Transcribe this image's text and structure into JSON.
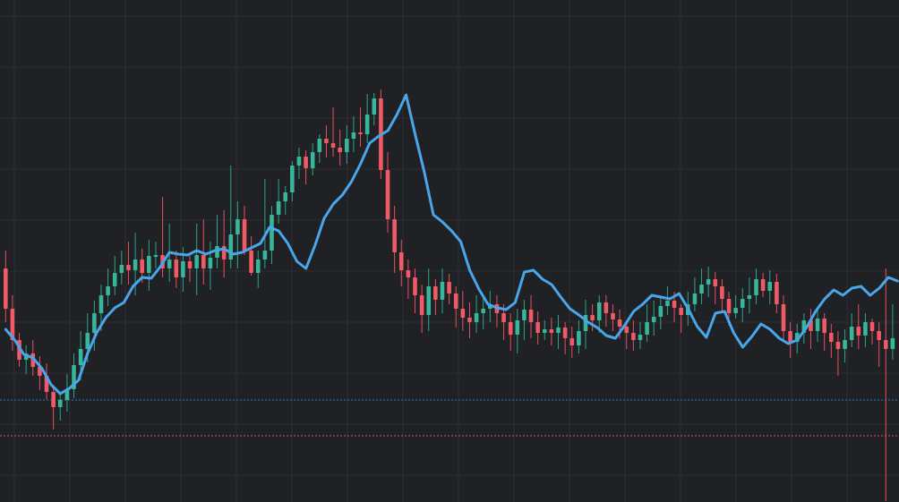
{
  "chart_data": {
    "type": "candlestick",
    "title": "",
    "xlabel": "",
    "ylabel": "",
    "ylim": [
      0,
      561
    ],
    "grid": true,
    "candles": [
      [
        0,
        300,
        345,
        360,
        280
      ],
      [
        1,
        345,
        380,
        392,
        330
      ],
      [
        2,
        380,
        402,
        410,
        372
      ],
      [
        3,
        402,
        395,
        418,
        386
      ],
      [
        4,
        395,
        410,
        420,
        380
      ],
      [
        5,
        410,
        420,
        436,
        398
      ],
      [
        6,
        420,
        438,
        446,
        406
      ],
      [
        7,
        438,
        455,
        480,
        430
      ],
      [
        8,
        455,
        447,
        470,
        438
      ],
      [
        9,
        447,
        435,
        460,
        418
      ],
      [
        10,
        435,
        408,
        445,
        395
      ],
      [
        11,
        408,
        390,
        425,
        370
      ],
      [
        12,
        390,
        372,
        405,
        350
      ],
      [
        13,
        372,
        350,
        392,
        336
      ],
      [
        14,
        350,
        330,
        370,
        318
      ],
      [
        15,
        330,
        320,
        342,
        300
      ],
      [
        16,
        320,
        305,
        330,
        286
      ],
      [
        17,
        305,
        296,
        318,
        280
      ],
      [
        18,
        296,
        302,
        318,
        270
      ],
      [
        19,
        302,
        290,
        330,
        260
      ],
      [
        20,
        290,
        305,
        316,
        278
      ],
      [
        21,
        305,
        286,
        325,
        268
      ],
      [
        22,
        286,
        285,
        300,
        270
      ],
      [
        23,
        285,
        300,
        310,
        220
      ],
      [
        24,
        300,
        290,
        315,
        250
      ],
      [
        25,
        290,
        310,
        322,
        280
      ],
      [
        26,
        310,
        292,
        326,
        276
      ],
      [
        27,
        292,
        300,
        315,
        286
      ],
      [
        28,
        300,
        285,
        330,
        250
      ],
      [
        29,
        285,
        300,
        318,
        245
      ],
      [
        30,
        300,
        288,
        324,
        270
      ],
      [
        31,
        288,
        275,
        300,
        240
      ],
      [
        32,
        275,
        290,
        310,
        235
      ],
      [
        33,
        290,
        262,
        300,
        185
      ],
      [
        34,
        262,
        245,
        300,
        225
      ],
      [
        35,
        245,
        280,
        285,
        230
      ],
      [
        36,
        280,
        305,
        308,
        264
      ],
      [
        37,
        305,
        290,
        322,
        280
      ],
      [
        38,
        290,
        280,
        300,
        200
      ],
      [
        39,
        280,
        240,
        295,
        230
      ],
      [
        40,
        240,
        225,
        250,
        200
      ],
      [
        41,
        225,
        215,
        240,
        208
      ],
      [
        42,
        215,
        185,
        225,
        180
      ],
      [
        43,
        185,
        175,
        200,
        165
      ],
      [
        44,
        175,
        188,
        206,
        168
      ],
      [
        45,
        188,
        170,
        196,
        160
      ],
      [
        46,
        170,
        155,
        182,
        150
      ],
      [
        47,
        155,
        160,
        176,
        140
      ],
      [
        48,
        160,
        165,
        175,
        120
      ],
      [
        49,
        165,
        170,
        185,
        145
      ],
      [
        50,
        170,
        155,
        183,
        140
      ],
      [
        51,
        155,
        148,
        170,
        130
      ],
      [
        52,
        148,
        150,
        164,
        120
      ],
      [
        53,
        150,
        128,
        160,
        105
      ],
      [
        54,
        128,
        110,
        140,
        104
      ],
      [
        55,
        110,
        190,
        200,
        100
      ],
      [
        56,
        190,
        245,
        260,
        170
      ],
      [
        57,
        245,
        282,
        305,
        230
      ],
      [
        58,
        282,
        302,
        320,
        268
      ],
      [
        59,
        302,
        310,
        334,
        290
      ],
      [
        60,
        310,
        330,
        350,
        300
      ],
      [
        61,
        330,
        352,
        372,
        318
      ],
      [
        62,
        352,
        320,
        370,
        300
      ],
      [
        63,
        320,
        335,
        352,
        312
      ],
      [
        64,
        335,
        315,
        350,
        300
      ],
      [
        65,
        315,
        328,
        340,
        306
      ],
      [
        66,
        328,
        345,
        366,
        320
      ],
      [
        67,
        345,
        355,
        370,
        325
      ],
      [
        68,
        355,
        360,
        378,
        338
      ],
      [
        69,
        360,
        350,
        372,
        330
      ],
      [
        70,
        350,
        345,
        368,
        330
      ],
      [
        71,
        345,
        340,
        360,
        325
      ],
      [
        72,
        340,
        350,
        366,
        330
      ],
      [
        73,
        350,
        360,
        380,
        340
      ],
      [
        74,
        360,
        374,
        392,
        350
      ],
      [
        75,
        374,
        358,
        395,
        345
      ],
      [
        76,
        358,
        346,
        380,
        335
      ],
      [
        77,
        346,
        360,
        378,
        330
      ],
      [
        78,
        360,
        372,
        385,
        348
      ],
      [
        79,
        372,
        368,
        380,
        358
      ],
      [
        80,
        368,
        372,
        386,
        355
      ],
      [
        81,
        372,
        366,
        390,
        352
      ],
      [
        82,
        366,
        378,
        396,
        360
      ],
      [
        83,
        378,
        386,
        400,
        365
      ],
      [
        84,
        386,
        370,
        395,
        358
      ],
      [
        85,
        370,
        352,
        390,
        335
      ],
      [
        86,
        352,
        358,
        370,
        340
      ],
      [
        87,
        358,
        338,
        372,
        330
      ],
      [
        88,
        338,
        350,
        365,
        330
      ],
      [
        89,
        350,
        357,
        370,
        340
      ],
      [
        90,
        357,
        365,
        378,
        346
      ],
      [
        91,
        365,
        372,
        390,
        360
      ],
      [
        92,
        372,
        380,
        392,
        358
      ],
      [
        93,
        380,
        374,
        390,
        360
      ],
      [
        94,
        374,
        360,
        382,
        340
      ],
      [
        95,
        360,
        354,
        375,
        336
      ],
      [
        96,
        354,
        342,
        368,
        330
      ],
      [
        97,
        342,
        336,
        352,
        320
      ],
      [
        98,
        336,
        344,
        360,
        326
      ],
      [
        99,
        344,
        352,
        372,
        340
      ],
      [
        100,
        352,
        340,
        364,
        326
      ],
      [
        101,
        340,
        328,
        348,
        310
      ],
      [
        102,
        328,
        318,
        340,
        300
      ],
      [
        103,
        318,
        312,
        332,
        298
      ],
      [
        104,
        312,
        320,
        340,
        304
      ],
      [
        105,
        320,
        334,
        348,
        312
      ],
      [
        106,
        334,
        350,
        364,
        326
      ],
      [
        107,
        350,
        344,
        356,
        330
      ],
      [
        108,
        344,
        334,
        360,
        322
      ],
      [
        109,
        334,
        330,
        350,
        310
      ],
      [
        110,
        330,
        312,
        340,
        300
      ],
      [
        111,
        312,
        325,
        332,
        305
      ],
      [
        112,
        325,
        315,
        340,
        302
      ],
      [
        113,
        315,
        340,
        350,
        306
      ],
      [
        114,
        340,
        370,
        380,
        330
      ],
      [
        115,
        370,
        382,
        400,
        360
      ],
      [
        116,
        382,
        372,
        395,
        362
      ],
      [
        117,
        372,
        358,
        384,
        350
      ],
      [
        118,
        358,
        370,
        390,
        345
      ],
      [
        119,
        370,
        356,
        382,
        346
      ],
      [
        120,
        356,
        372,
        392,
        350
      ],
      [
        121,
        372,
        382,
        400,
        362
      ],
      [
        122,
        382,
        390,
        420,
        370
      ],
      [
        123,
        390,
        380,
        405,
        368
      ],
      [
        124,
        380,
        365,
        388,
        350
      ],
      [
        125,
        365,
        375,
        390,
        340
      ],
      [
        126,
        375,
        360,
        388,
        350
      ],
      [
        127,
        360,
        370,
        385,
        356
      ],
      [
        128,
        370,
        380,
        410,
        360
      ],
      [
        129,
        380,
        390,
        560,
        300
      ],
      [
        130,
        390,
        378,
        402,
        340
      ]
    ],
    "line": [
      368,
      380,
      396,
      400,
      412,
      430,
      440,
      434,
      425,
      395,
      372,
      355,
      344,
      338,
      320,
      310,
      311,
      298,
      282,
      284,
      285,
      280,
      284,
      280,
      278,
      284,
      282,
      277,
      272,
      254,
      258,
      272,
      292,
      300,
      274,
      244,
      228,
      218,
      203,
      183,
      160,
      152,
      146,
      128,
      106,
      150,
      192,
      240,
      248,
      258,
      270,
      302,
      323,
      340,
      344,
      346,
      338,
      304,
      302,
      312,
      318,
      332,
      345,
      352,
      360,
      366,
      375,
      378,
      364,
      348,
      340,
      330,
      332,
      334,
      328,
      345,
      365,
      377,
      350,
      348,
      372,
      388,
      376,
      362,
      368,
      378,
      384,
      380,
      366,
      348,
      334,
      324,
      330,
      322,
      320,
      330,
      322,
      310,
      314
    ]
  }
}
